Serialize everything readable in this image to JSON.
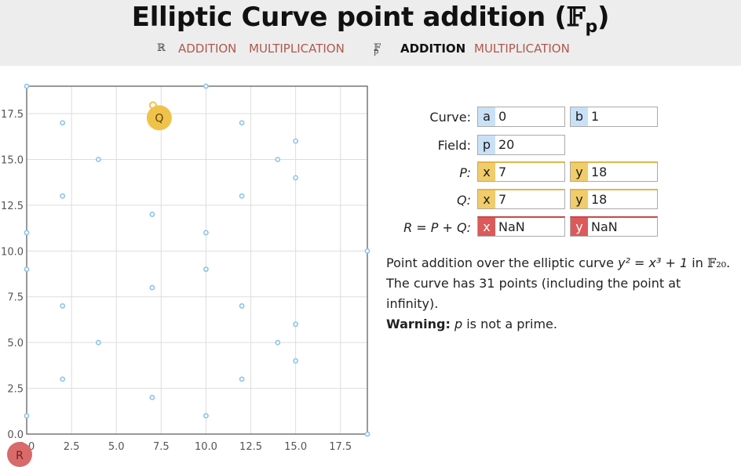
{
  "header": {
    "title_main": "Elliptic Curve point addition (",
    "title_field": "𝔽",
    "title_sub": "p",
    "title_close": ")",
    "nav": {
      "real_symbol": "ℝ",
      "real_addition": "ADDITION",
      "real_multiplication": "MULTIPLICATION",
      "fp_symbol": "𝔽",
      "fp_sub": "p",
      "fp_addition": "ADDITION",
      "fp_multiplication": "MULTIPLICATION"
    }
  },
  "form": {
    "curve_label": "Curve:",
    "a_tag": "a",
    "a_value": "0",
    "b_tag": "b",
    "b_value": "1",
    "field_label": "Field:",
    "p_tag": "p",
    "p_value": "20",
    "P_label": "P:",
    "P_x_tag": "x",
    "P_x_value": "7",
    "P_y_tag": "y",
    "P_y_value": "18",
    "Q_label": "Q:",
    "Q_x_tag": "x",
    "Q_x_value": "7",
    "Q_y_tag": "y",
    "Q_y_value": "18",
    "R_label": "R = P + Q:",
    "R_x_tag": "x",
    "R_x_value": "NaN",
    "R_y_tag": "y",
    "R_y_value": "NaN"
  },
  "description": {
    "line1_a": "Point addition over the elliptic curve ",
    "line1_eq": "y² = x³ + 1",
    "line1_b": " in ",
    "line1_field": "𝔽₂₀",
    "line1_end": ".",
    "line2": "The curve has 31 points (including the point at infinity).",
    "warning_label": "Warning:",
    "warning_text_var": "p",
    "warning_text": " is not a prime."
  },
  "colors": {
    "point": "#8cc3ea",
    "Q_marker": "#f0c24a",
    "R_marker": "#d96a6a",
    "link": "#b0584a",
    "grid": "#dddddd"
  },
  "chart_data": {
    "type": "scatter",
    "title": "",
    "xlabel": "",
    "ylabel": "",
    "xlim": [
      0,
      19
    ],
    "ylim": [
      0,
      19
    ],
    "x_ticks": [
      "0.0",
      "2.5",
      "5.0",
      "7.5",
      "10.0",
      "12.5",
      "15.0",
      "17.5"
    ],
    "y_ticks": [
      "0.0",
      "2.5",
      "5.0",
      "7.5",
      "10.0",
      "12.5",
      "15.0",
      "17.5"
    ],
    "grid": true,
    "series": [
      {
        "points": [
          [
            0,
            1
          ],
          [
            0,
            9
          ],
          [
            0,
            11
          ],
          [
            0,
            19
          ],
          [
            2,
            3
          ],
          [
            2,
            7
          ],
          [
            2,
            13
          ],
          [
            2,
            17
          ],
          [
            4,
            5
          ],
          [
            4,
            15
          ],
          [
            7,
            2
          ],
          [
            7,
            8
          ],
          [
            7,
            12
          ],
          [
            7,
            18
          ],
          [
            10,
            1
          ],
          [
            10,
            9
          ],
          [
            10,
            11
          ],
          [
            10,
            19
          ],
          [
            12,
            3
          ],
          [
            12,
            7
          ],
          [
            12,
            13
          ],
          [
            12,
            17
          ],
          [
            14,
            5
          ],
          [
            14,
            15
          ],
          [
            15,
            4
          ],
          [
            15,
            6
          ],
          [
            15,
            14
          ],
          [
            15,
            16
          ],
          [
            19,
            0
          ],
          [
            19,
            10
          ]
        ]
      }
    ],
    "markers": [
      {
        "label": "Q",
        "x": 7,
        "y": 18,
        "color": "#f0c24a"
      },
      {
        "label": "R",
        "color": "#d96a6a"
      }
    ]
  }
}
